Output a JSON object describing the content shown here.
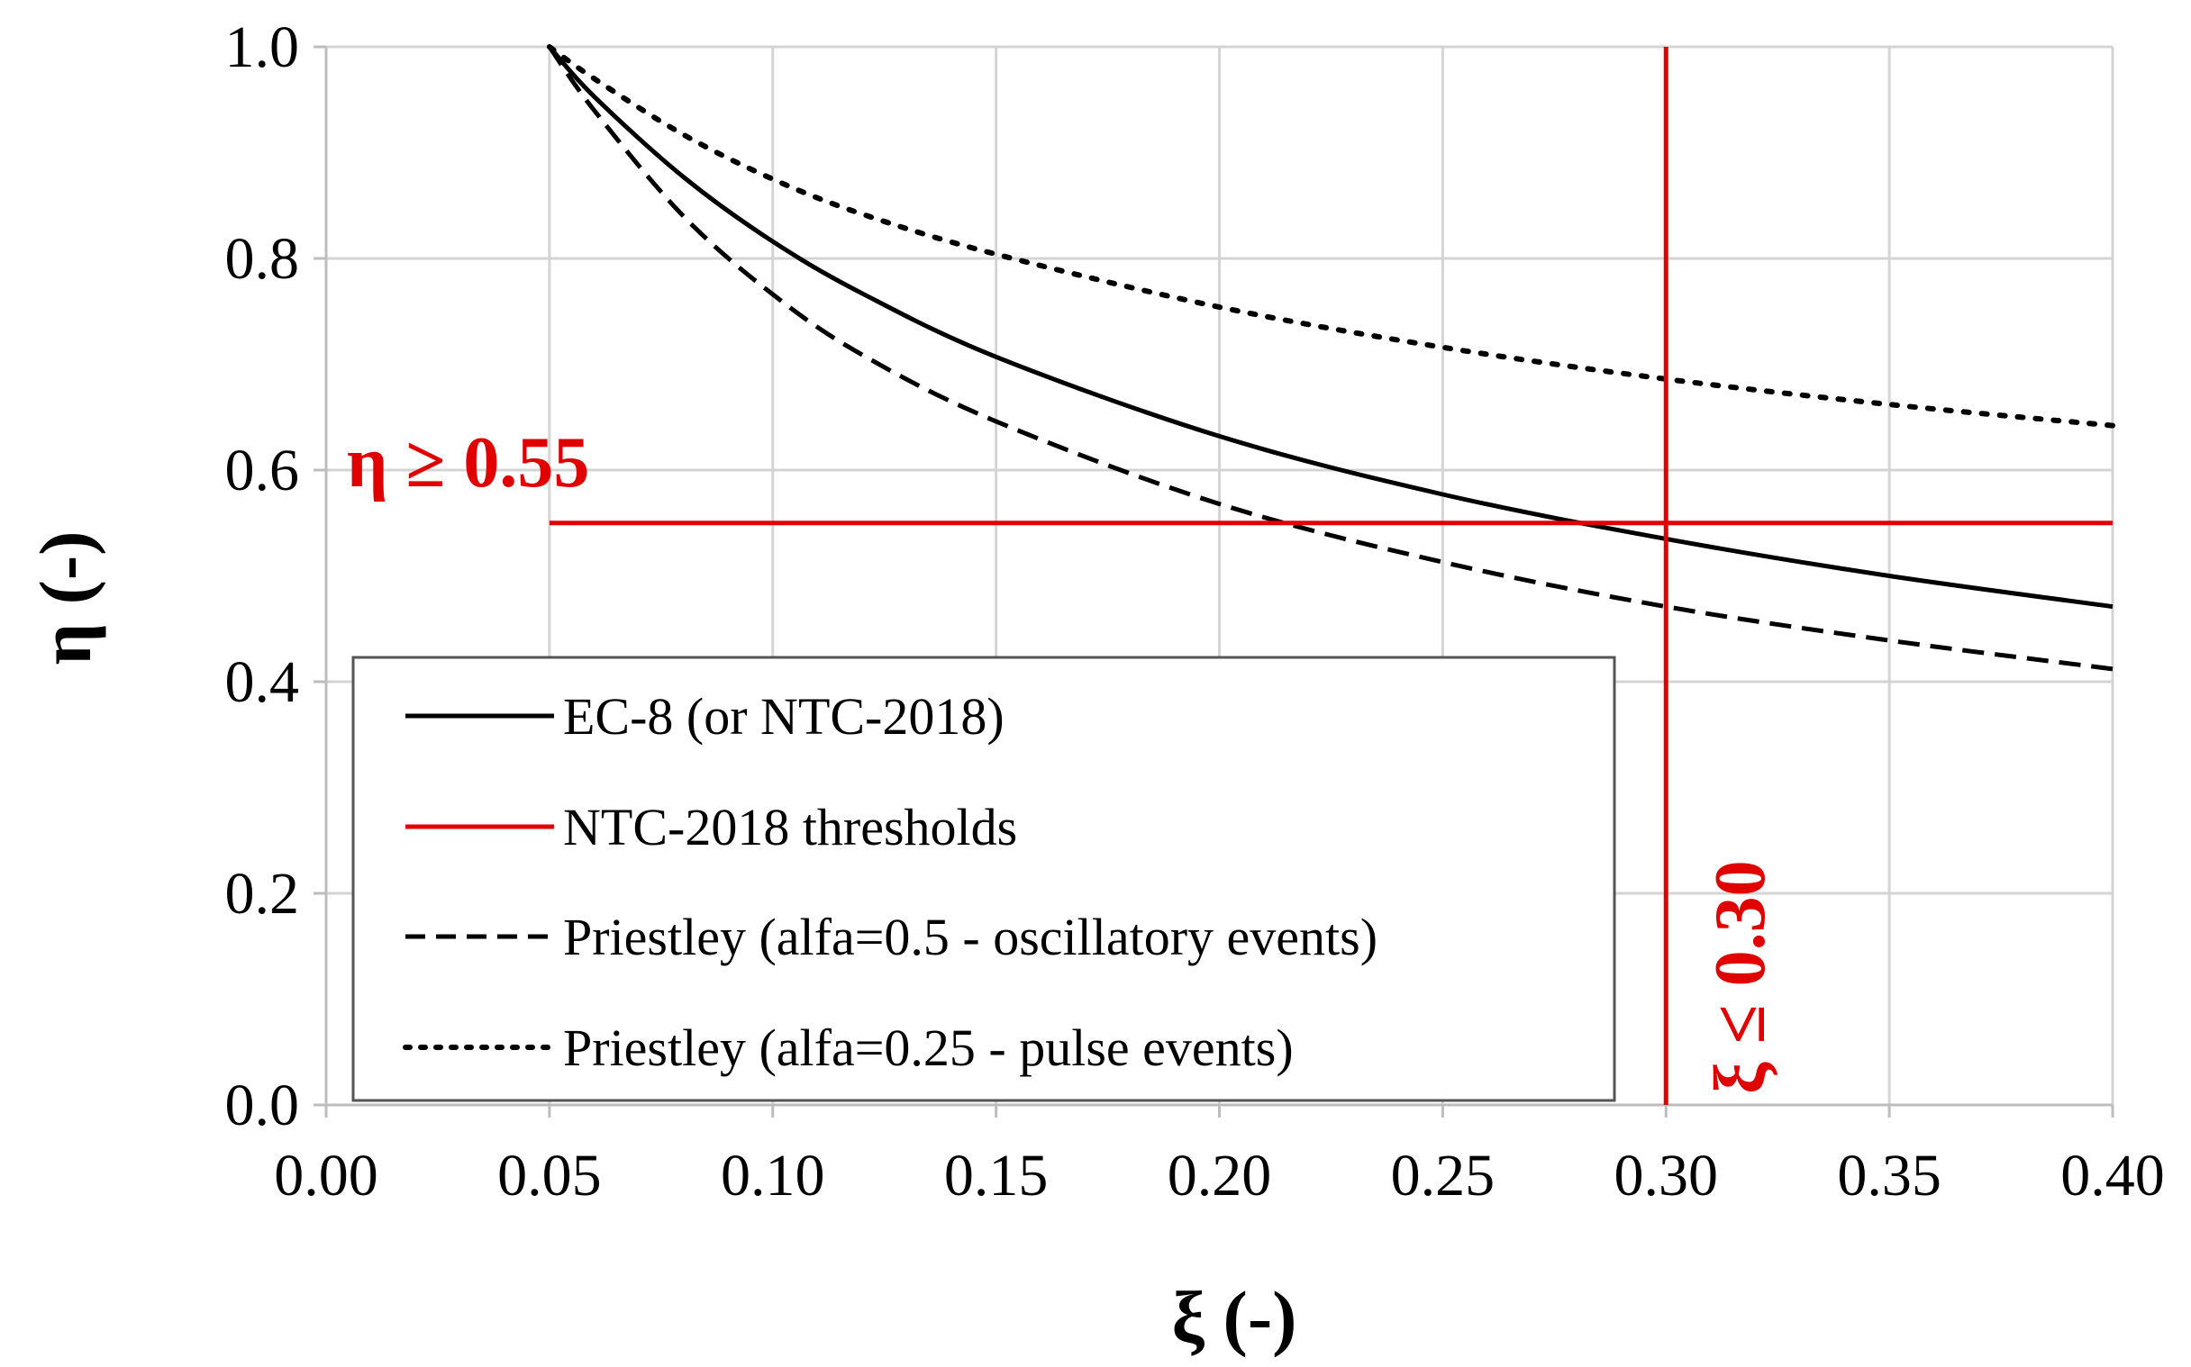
{
  "chart_data": {
    "type": "line",
    "title": "",
    "xlabel": "ξ (-)",
    "ylabel": "η (-)",
    "xlim": [
      0.0,
      0.4
    ],
    "ylim": [
      0.0,
      1.0
    ],
    "grid": true,
    "x_ticks": [
      "0.00",
      "0.05",
      "0.10",
      "0.15",
      "0.20",
      "0.25",
      "0.30",
      "0.35",
      "0.40"
    ],
    "y_ticks": [
      "0.0",
      "0.2",
      "0.4",
      "0.6",
      "0.8",
      "1.0"
    ],
    "x": [
      0.05,
      0.06,
      0.08,
      0.1,
      0.12,
      0.15,
      0.2,
      0.25,
      0.3,
      0.35,
      0.4
    ],
    "series": [
      {
        "name": "EC-8 (or NTC-2018)",
        "style": "solid",
        "color": "#000000",
        "values": [
          1.0,
          0.953,
          0.877,
          0.816,
          0.767,
          0.707,
          0.632,
          0.577,
          0.535,
          0.5,
          0.471
        ]
      },
      {
        "name": "Priestley (alfa=0.5 - oscillatory events)",
        "style": "dashed",
        "color": "#000000",
        "values": [
          1.0,
          0.94,
          0.84,
          0.766,
          0.709,
          0.646,
          0.568,
          0.513,
          0.471,
          0.439,
          0.412
        ]
      },
      {
        "name": "Priestley (alfa=0.25 - pulse events)",
        "style": "dotted",
        "color": "#000000",
        "values": [
          1.0,
          0.97,
          0.917,
          0.875,
          0.842,
          0.804,
          0.754,
          0.716,
          0.686,
          0.662,
          0.642
        ]
      }
    ],
    "thresholds": {
      "legend_label": "NTC-2018 thresholds",
      "color": "#e00000",
      "eta_min": 0.55,
      "xi_max": 0.3,
      "eta_label": "η ≥ 0.55",
      "xi_label": "ξ ≤ 0.30"
    },
    "legend_order": [
      "EC-8 (or NTC-2018)",
      "NTC-2018 thresholds",
      "Priestley (alfa=0.5 - oscillatory events)",
      "Priestley (alfa=0.25 - pulse events)"
    ],
    "legend_position": "bottom-left"
  }
}
